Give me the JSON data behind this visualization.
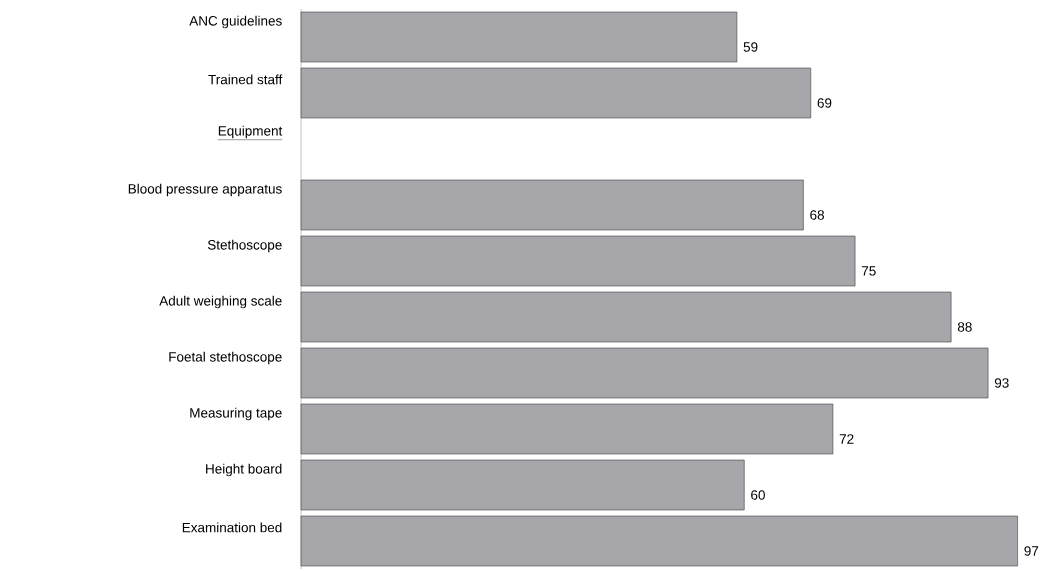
{
  "chart_data": {
    "type": "bar",
    "orientation": "horizontal",
    "categories": [
      "ANC guidelines",
      "Trained staff",
      "Equipment",
      "Blood pressure apparatus",
      "Stethoscope",
      "Adult weighing scale",
      "Foetal stethoscope",
      "Measuring tape",
      "Height board",
      "Examination bed"
    ],
    "values": [
      59,
      69,
      null,
      68,
      75,
      88,
      93,
      72,
      60,
      97
    ],
    "color": "#a6a6ab",
    "data_labels": true
  }
}
